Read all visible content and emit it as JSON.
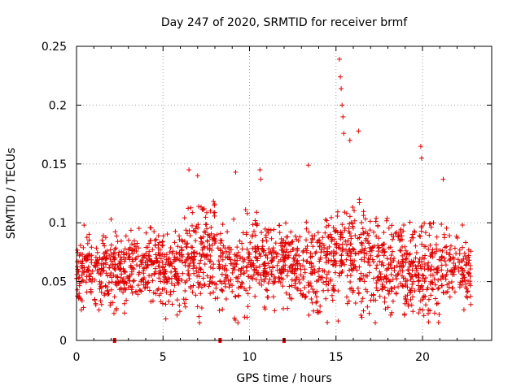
{
  "chart_data": {
    "type": "scatter",
    "title": "Day 247 of 2020, SRMTID for receiver brmf",
    "xlabel": "GPS time / hours",
    "ylabel": "SRMTID / TECUs",
    "xlim": [
      0,
      24
    ],
    "ylim": [
      0,
      0.25
    ],
    "xticks": [
      0,
      5,
      10,
      15,
      20
    ],
    "xtick_labels": [
      "0",
      "5",
      "10",
      "15",
      "20"
    ],
    "yticks": [
      0,
      0.05,
      0.1,
      0.15,
      0.2,
      0.25
    ],
    "ytick_labels": [
      "0",
      "0.05",
      "0.1",
      "0.15",
      "0.2",
      "0.25"
    ],
    "grid": true,
    "marker": "+",
    "series_color": "#e00000",
    "series": [
      {
        "name": "SRMTID",
        "note": "dense scatter of ~2000 points; representative envelope per hour",
        "hourly_typical": [
          {
            "hour": 0,
            "mean": 0.06,
            "spread": 0.02
          },
          {
            "hour": 1,
            "mean": 0.06,
            "spread": 0.02
          },
          {
            "hour": 2,
            "mean": 0.058,
            "spread": 0.02
          },
          {
            "hour": 3,
            "mean": 0.062,
            "spread": 0.02
          },
          {
            "hour": 4,
            "mean": 0.065,
            "spread": 0.02
          },
          {
            "hour": 5,
            "mean": 0.062,
            "spread": 0.02
          },
          {
            "hour": 6,
            "mean": 0.07,
            "spread": 0.025
          },
          {
            "hour": 7,
            "mean": 0.075,
            "spread": 0.03
          },
          {
            "hour": 8,
            "mean": 0.06,
            "spread": 0.02
          },
          {
            "hour": 9,
            "mean": 0.06,
            "spread": 0.025
          },
          {
            "hour": 10,
            "mean": 0.068,
            "spread": 0.02
          },
          {
            "hour": 11,
            "mean": 0.065,
            "spread": 0.02
          },
          {
            "hour": 12,
            "mean": 0.065,
            "spread": 0.02
          },
          {
            "hour": 13,
            "mean": 0.065,
            "spread": 0.025
          },
          {
            "hour": 14,
            "mean": 0.062,
            "spread": 0.025
          },
          {
            "hour": 15,
            "mean": 0.075,
            "spread": 0.03
          },
          {
            "hour": 16,
            "mean": 0.07,
            "spread": 0.03
          },
          {
            "hour": 17,
            "mean": 0.065,
            "spread": 0.025
          },
          {
            "hour": 18,
            "mean": 0.065,
            "spread": 0.025
          },
          {
            "hour": 19,
            "mean": 0.062,
            "spread": 0.025
          },
          {
            "hour": 20,
            "mean": 0.058,
            "spread": 0.025
          },
          {
            "hour": 21,
            "mean": 0.065,
            "spread": 0.02
          },
          {
            "hour": 22,
            "mean": 0.06,
            "spread": 0.02
          }
        ],
        "peaks": [
          {
            "x": 2.0,
            "y": 0.103
          },
          {
            "x": 6.5,
            "y": 0.145
          },
          {
            "x": 7.0,
            "y": 0.14
          },
          {
            "x": 9.2,
            "y": 0.143
          },
          {
            "x": 10.6,
            "y": 0.145
          },
          {
            "x": 10.65,
            "y": 0.137
          },
          {
            "x": 13.4,
            "y": 0.149
          },
          {
            "x": 15.2,
            "y": 0.239
          },
          {
            "x": 15.25,
            "y": 0.224
          },
          {
            "x": 15.3,
            "y": 0.214
          },
          {
            "x": 15.35,
            "y": 0.2
          },
          {
            "x": 15.4,
            "y": 0.19
          },
          {
            "x": 15.45,
            "y": 0.176
          },
          {
            "x": 15.8,
            "y": 0.17
          },
          {
            "x": 16.3,
            "y": 0.178
          },
          {
            "x": 19.9,
            "y": 0.165
          },
          {
            "x": 19.95,
            "y": 0.155
          },
          {
            "x": 21.2,
            "y": 0.137
          }
        ],
        "x_range": [
          0,
          22.8
        ],
        "y_range": [
          0.015,
          0.239
        ]
      }
    ],
    "x_axis_markers": [
      2.2,
      8.3,
      12.0
    ]
  }
}
